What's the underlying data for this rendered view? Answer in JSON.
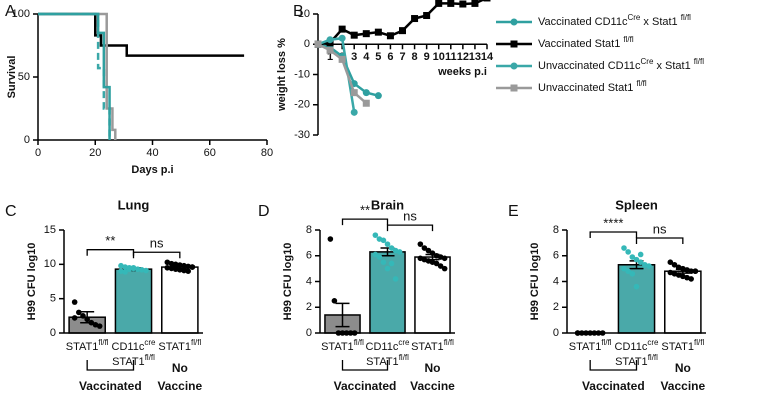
{
  "chart_data": [
    {
      "type": "step",
      "panel": "A",
      "xlabel": "Days p.i",
      "ylabel": "Survival",
      "xlim": [
        0,
        80
      ],
      "xticks": [
        0,
        20,
        40,
        60,
        80
      ],
      "ylim": [
        0,
        100
      ],
      "yticks": [
        0,
        50,
        100
      ],
      "series": [
        {
          "color": "#000000",
          "dash": false,
          "x": [
            0,
            20,
            22,
            31,
            72
          ],
          "values": [
            100,
            83,
            75,
            67,
            67
          ]
        },
        {
          "color": "#9a9a9a",
          "dash": false,
          "x": [
            0,
            21,
            24,
            26,
            27
          ],
          "values": [
            100,
            100,
            25,
            8,
            0
          ]
        },
        {
          "color": "#3aa8a8",
          "dash": true,
          "x": [
            0,
            20,
            21,
            23,
            25
          ],
          "values": [
            100,
            100,
            57,
            25,
            0
          ]
        },
        {
          "color": "#2fa0a0",
          "dash": false,
          "x": [
            0,
            21,
            23,
            25
          ],
          "values": [
            100,
            85,
            42,
            0
          ]
        }
      ]
    },
    {
      "type": "line",
      "panel": "B",
      "xlabel": "weeks p.i",
      "ylabel": "weight loss %",
      "xlim": [
        0,
        14
      ],
      "xticks": [
        1,
        2,
        3,
        4,
        5,
        6,
        7,
        8,
        9,
        10,
        11,
        12,
        13,
        14
      ],
      "ylim": [
        -30,
        10
      ],
      "yticks": [
        -30,
        -20,
        -10,
        0,
        10
      ],
      "series": [
        {
          "name": [
            "Vaccinated CD11c",
            "Cre",
            " x Stat1 ",
            "fl/fl"
          ],
          "color": "#2fa0a0",
          "marker": "circle",
          "x": [
            0,
            1,
            2,
            3,
            4,
            5
          ],
          "values": [
            0,
            -1,
            -4,
            -13,
            -16,
            -17
          ]
        },
        {
          "name": [
            "Vaccinated Stat1 ",
            "fl/fl"
          ],
          "color": "#000000",
          "marker": "square",
          "x": [
            0,
            1,
            2,
            3,
            4,
            5,
            6,
            7,
            8,
            9,
            10,
            11,
            12,
            13,
            14
          ],
          "values": [
            0,
            0.5,
            5,
            3,
            3.5,
            4,
            2.8,
            4.5,
            8.5,
            9.5,
            13.5,
            13.5,
            13.3,
            13.5,
            15.3
          ]
        },
        {
          "name": [
            "Unvaccinated CD11c",
            "Cre",
            " x Stat1 ",
            "fl/fl"
          ],
          "color": "#3aa8a8",
          "marker": "circle",
          "x": [
            0,
            1,
            2,
            3
          ],
          "values": [
            0,
            1.5,
            2,
            -22.5
          ]
        },
        {
          "name": [
            "Unvaccinated Stat1 ",
            "fl/fl"
          ],
          "color": "#9a9a9a",
          "marker": "square",
          "x": [
            0,
            1,
            2,
            3,
            4
          ],
          "values": [
            0,
            -2,
            -5,
            -16,
            -19.5
          ]
        }
      ]
    },
    {
      "type": "bar",
      "panel": "C",
      "title": "Lung",
      "ylabel": "H99 CFU log10",
      "ylim": [
        0,
        15
      ],
      "yticks": [
        0,
        5,
        10,
        15
      ],
      "categories": [
        [
          [
            "STAT1",
            "fl/fl"
          ]
        ],
        [
          [
            "CD11c",
            "cre"
          ],
          [
            "STAT1",
            "fl/fl"
          ]
        ],
        [
          [
            "STAT1",
            "fl/fl"
          ]
        ]
      ],
      "colors": [
        "#8c8c8c",
        "#4aa9a9",
        "#ffffff"
      ],
      "dot_colors": [
        "#000000",
        "#35b8b8",
        "#000000"
      ],
      "values": [
        2.3,
        9.3,
        9.6
      ],
      "errors": [
        0.8,
        0.2,
        0.2
      ],
      "points": [
        [
          4.5,
          3.0,
          2.5,
          2.0,
          1.5,
          1.2,
          1.0,
          2.2
        ],
        [
          9.8,
          9.6,
          9.5,
          9.4,
          9.3,
          9.2,
          9.1,
          9.0,
          8.9,
          9.3,
          9.5
        ],
        [
          10.3,
          10.1,
          10,
          9.9,
          9.8,
          9.7,
          9.6,
          9.5,
          9.4,
          9.3,
          9.2,
          9.1,
          9.0,
          9.6
        ]
      ],
      "significance": [
        "**",
        "ns"
      ],
      "groups": [
        [
          "Vaccinated"
        ],
        [
          "No",
          "Vaccine"
        ]
      ]
    },
    {
      "type": "bar",
      "panel": "D",
      "title": "Brain",
      "ylabel": "H99 CFU log10",
      "ylim": [
        0,
        8
      ],
      "yticks": [
        0,
        2,
        4,
        6,
        8
      ],
      "categories": [
        [
          [
            "STAT1",
            "fl/fl"
          ]
        ],
        [
          [
            "CD11c",
            "cre"
          ],
          [
            "STAT1",
            "fl/fl"
          ]
        ],
        [
          [
            "STAT1",
            "fl/fl"
          ]
        ]
      ],
      "colors": [
        "#8c8c8c",
        "#4aa9a9",
        "#ffffff"
      ],
      "dot_colors": [
        "#000000",
        "#35b8b8",
        "#000000"
      ],
      "values": [
        1.4,
        6.3,
        5.9
      ],
      "errors": [
        0.9,
        0.3,
        0.2
      ],
      "points": [
        [
          7.3,
          2.5,
          0,
          0,
          0,
          0,
          0
        ],
        [
          7.6,
          7.3,
          7.2,
          6.9,
          6.6,
          6.4,
          6.3,
          6.1,
          5.9,
          5.5,
          5.0,
          5.4,
          4.2
        ],
        [
          6.9,
          6.6,
          6.4,
          6.2,
          6.0,
          5.9,
          5.8,
          5.8,
          5.7,
          5.6,
          5.5,
          5.4,
          5.2,
          5.0
        ]
      ],
      "significance": [
        "**",
        "ns"
      ],
      "groups": [
        [
          "Vaccinated"
        ],
        [
          "No",
          "Vaccine"
        ]
      ]
    },
    {
      "type": "bar",
      "panel": "E",
      "title": "Spleen",
      "ylabel": "H99 CFU log10",
      "ylim": [
        0,
        8
      ],
      "yticks": [
        0,
        2,
        4,
        6,
        8
      ],
      "categories": [
        [
          [
            "STAT1",
            "fl/fl"
          ]
        ],
        [
          [
            "CD11c",
            "cre"
          ],
          [
            "STAT1",
            "fl/fl"
          ]
        ],
        [
          [
            "STAT1",
            "fl/fl"
          ]
        ]
      ],
      "colors": [
        "#8c8c8c",
        "#4aa9a9",
        "#ffffff"
      ],
      "dot_colors": [
        "#000000",
        "#35b8b8",
        "#000000"
      ],
      "values": [
        0,
        5.3,
        4.8
      ],
      "errors": [
        0,
        0.3,
        0.15
      ],
      "points": [
        [
          0,
          0,
          0,
          0,
          0,
          0,
          0,
          0
        ],
        [
          6.6,
          6.3,
          5.9,
          5.7,
          5.5,
          5.3,
          5.2,
          5.0,
          4.8,
          4.6,
          3.6,
          6.1
        ],
        [
          5.5,
          5.3,
          5.1,
          5.0,
          4.9,
          4.8,
          4.8,
          4.7,
          4.6,
          4.5,
          4.4,
          4.3,
          4.2,
          4.8
        ]
      ],
      "significance": [
        "****",
        "ns"
      ],
      "groups": [
        [
          "Vaccinated"
        ],
        [
          "No",
          "Vaccine"
        ]
      ]
    }
  ]
}
